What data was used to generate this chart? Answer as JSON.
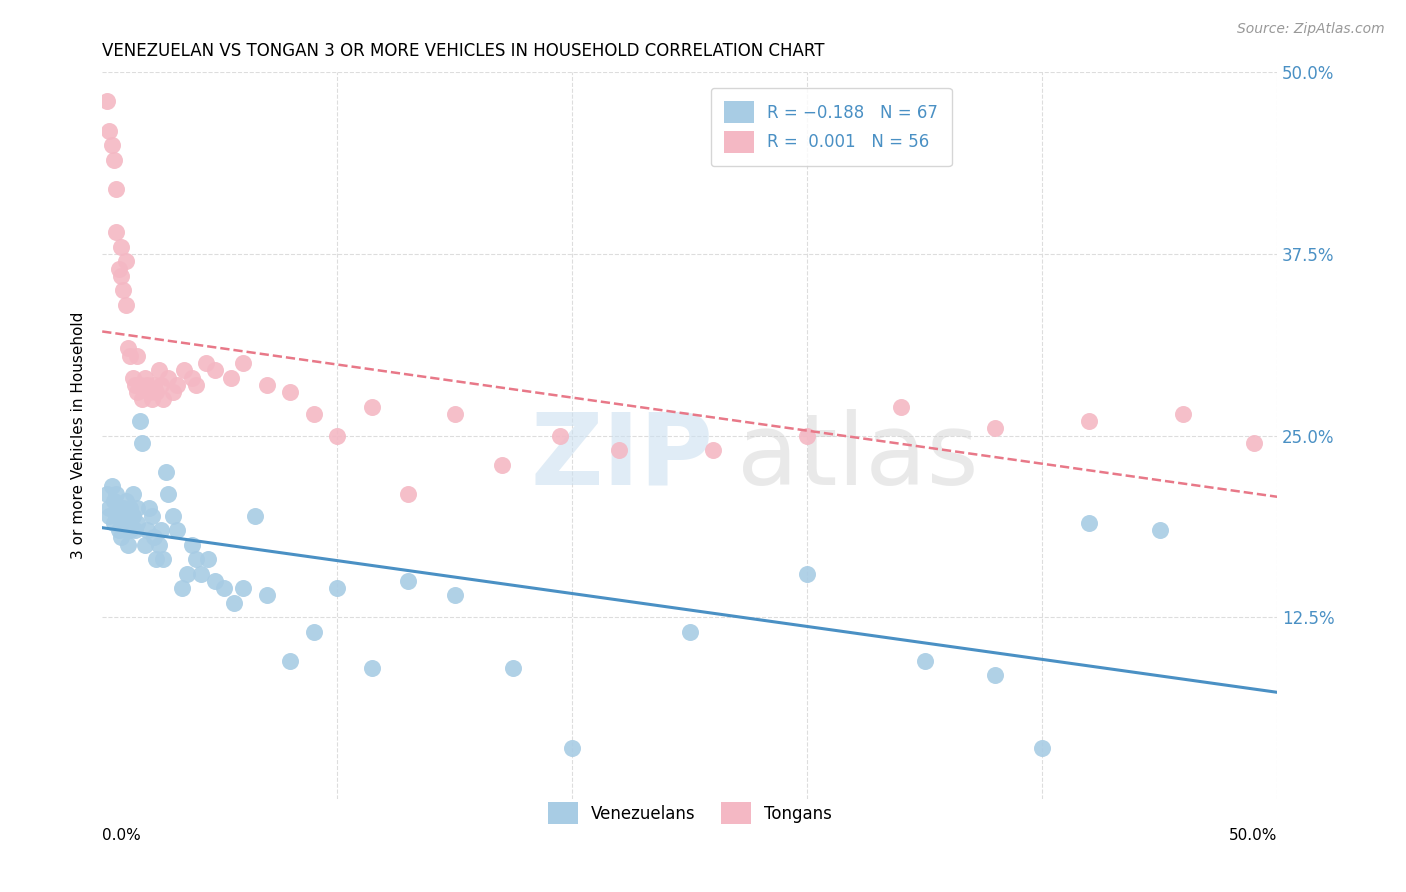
{
  "title": "VENEZUELAN VS TONGAN 3 OR MORE VEHICLES IN HOUSEHOLD CORRELATION CHART",
  "source": "Source: ZipAtlas.com",
  "ylabel": "3 or more Vehicles in Household",
  "xlim": [
    0.0,
    0.5
  ],
  "ylim": [
    0.0,
    0.5
  ],
  "legend_blue_R": "R = -0.188",
  "legend_blue_N": "N = 67",
  "legend_pink_R": "R =  0.001",
  "legend_pink_N": "N = 56",
  "blue_color": "#a8cce4",
  "pink_color": "#f4b8c4",
  "blue_line_color": "#4a90c4",
  "pink_line_color": "#e87888",
  "venezuelan_points_x": [
    0.002,
    0.003,
    0.003,
    0.004,
    0.005,
    0.005,
    0.006,
    0.006,
    0.007,
    0.007,
    0.008,
    0.008,
    0.009,
    0.009,
    0.01,
    0.01,
    0.011,
    0.011,
    0.012,
    0.012,
    0.013,
    0.013,
    0.014,
    0.015,
    0.015,
    0.016,
    0.017,
    0.018,
    0.019,
    0.02,
    0.021,
    0.022,
    0.023,
    0.024,
    0.025,
    0.026,
    0.027,
    0.028,
    0.03,
    0.032,
    0.034,
    0.036,
    0.038,
    0.04,
    0.042,
    0.045,
    0.048,
    0.052,
    0.056,
    0.06,
    0.065,
    0.07,
    0.08,
    0.09,
    0.1,
    0.115,
    0.13,
    0.15,
    0.175,
    0.2,
    0.25,
    0.3,
    0.35,
    0.38,
    0.4,
    0.42,
    0.45
  ],
  "venezuelan_points_y": [
    0.21,
    0.2,
    0.195,
    0.215,
    0.205,
    0.19,
    0.21,
    0.195,
    0.185,
    0.2,
    0.195,
    0.18,
    0.2,
    0.19,
    0.205,
    0.185,
    0.195,
    0.175,
    0.2,
    0.185,
    0.21,
    0.195,
    0.185,
    0.2,
    0.19,
    0.26,
    0.245,
    0.175,
    0.185,
    0.2,
    0.195,
    0.18,
    0.165,
    0.175,
    0.185,
    0.165,
    0.225,
    0.21,
    0.195,
    0.185,
    0.145,
    0.155,
    0.175,
    0.165,
    0.155,
    0.165,
    0.15,
    0.145,
    0.135,
    0.145,
    0.195,
    0.14,
    0.095,
    0.115,
    0.145,
    0.09,
    0.15,
    0.14,
    0.09,
    0.035,
    0.115,
    0.155,
    0.095,
    0.085,
    0.035,
    0.19,
    0.185
  ],
  "tongan_points_x": [
    0.002,
    0.003,
    0.004,
    0.005,
    0.006,
    0.006,
    0.007,
    0.008,
    0.008,
    0.009,
    0.01,
    0.01,
    0.011,
    0.012,
    0.013,
    0.014,
    0.015,
    0.015,
    0.016,
    0.017,
    0.018,
    0.019,
    0.02,
    0.021,
    0.022,
    0.023,
    0.024,
    0.025,
    0.026,
    0.028,
    0.03,
    0.032,
    0.035,
    0.038,
    0.04,
    0.044,
    0.048,
    0.055,
    0.06,
    0.07,
    0.08,
    0.09,
    0.1,
    0.115,
    0.13,
    0.15,
    0.17,
    0.195,
    0.22,
    0.26,
    0.3,
    0.34,
    0.38,
    0.42,
    0.46,
    0.49
  ],
  "tongan_points_y": [
    0.48,
    0.46,
    0.45,
    0.44,
    0.42,
    0.39,
    0.365,
    0.36,
    0.38,
    0.35,
    0.34,
    0.37,
    0.31,
    0.305,
    0.29,
    0.285,
    0.305,
    0.28,
    0.285,
    0.275,
    0.29,
    0.285,
    0.28,
    0.275,
    0.285,
    0.28,
    0.295,
    0.285,
    0.275,
    0.29,
    0.28,
    0.285,
    0.295,
    0.29,
    0.285,
    0.3,
    0.295,
    0.29,
    0.3,
    0.285,
    0.28,
    0.265,
    0.25,
    0.27,
    0.21,
    0.265,
    0.23,
    0.25,
    0.24,
    0.24,
    0.25,
    0.27,
    0.255,
    0.26,
    0.265,
    0.245
  ]
}
